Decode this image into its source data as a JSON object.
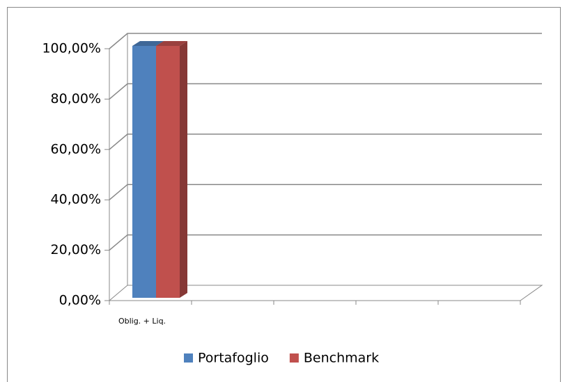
{
  "chart_data": {
    "type": "bar3d",
    "categories": [
      "Oblig. + Liq.",
      null,
      null,
      null,
      null
    ],
    "series": [
      {
        "name": "Portafoglio",
        "color": "#4f81bd",
        "values": [
          100,
          null,
          null,
          null,
          null
        ]
      },
      {
        "name": "Benchmark",
        "color": "#c0504d",
        "values": [
          100,
          null,
          null,
          null,
          null
        ]
      }
    ],
    "ylim": [
      0,
      100
    ],
    "yticks": [
      {
        "value": 0,
        "label": "0,00%"
      },
      {
        "value": 20,
        "label": "20,00%"
      },
      {
        "value": 40,
        "label": "40,00%"
      },
      {
        "value": 60,
        "label": "60,00%"
      },
      {
        "value": 80,
        "label": "80,00%"
      },
      {
        "value": 100,
        "label": "100,00%"
      }
    ],
    "grid": true,
    "legend": "bottom"
  }
}
